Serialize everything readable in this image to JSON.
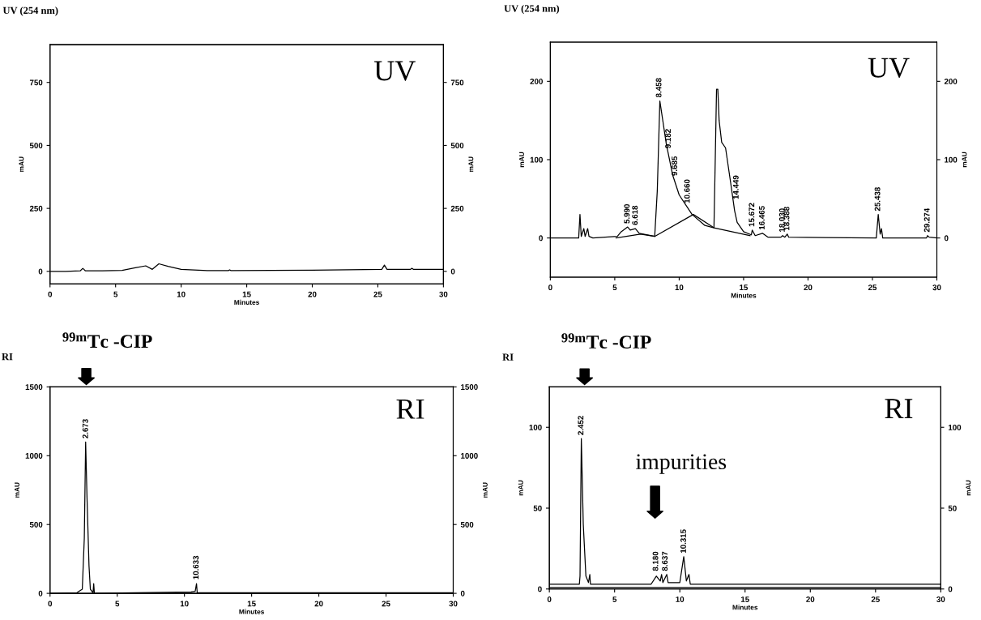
{
  "chart_data": [
    {
      "type": "line",
      "title": "UV (254 nm)",
      "xlabel": "Minutes",
      "ylabel": "mAU",
      "y2label": "mAU",
      "xlim": [
        0,
        30
      ],
      "xticks": [
        0,
        5,
        10,
        15,
        20,
        25,
        30
      ],
      "ylim": [
        -50,
        900
      ],
      "yticks": [
        0,
        250,
        500,
        750
      ],
      "y2lim": [
        -50,
        900
      ],
      "y2ticks": [
        0,
        250,
        500,
        750
      ],
      "series": [
        {
          "color": "#000000",
          "x": [
            0,
            1.2,
            2.3,
            2.5,
            2.7,
            4,
            5.5,
            6.5,
            7.3,
            7.8,
            8.3,
            9,
            10,
            12,
            13.6,
            13.7,
            13.8,
            20,
            25.3,
            25.5,
            25.7,
            27.5,
            27.6,
            27.7,
            30
          ],
          "values": [
            0,
            0,
            2,
            12,
            2,
            2,
            4,
            14,
            22,
            8,
            30,
            20,
            8,
            3,
            3,
            6,
            3,
            5,
            8,
            25,
            8,
            8,
            12,
            8,
            8
          ]
        }
      ],
      "annotations": [
        "UV"
      ]
    },
    {
      "type": "line",
      "title": "UV (254 nm)",
      "xlabel": "Minutes",
      "ylabel": "mAU",
      "y2label": "mAU",
      "xlim": [
        0,
        30
      ],
      "xticks": [
        0,
        5,
        10,
        15,
        20,
        25,
        30
      ],
      "ylim": [
        -50,
        250
      ],
      "yticks": [
        0,
        100,
        200
      ],
      "y2lim": [
        -50,
        250
      ],
      "y2ticks": [
        0,
        100,
        200
      ],
      "series": [
        {
          "color": "#000000",
          "x": [
            0,
            2.2,
            2.3,
            2.4,
            2.6,
            2.7,
            2.9,
            3.0,
            3.3,
            5.2,
            5.5,
            6.0,
            6.2,
            6.6,
            6.9,
            8.1,
            8.3,
            8.5,
            9.0,
            9.5,
            10.0,
            11.0,
            12.0,
            12.7,
            12.8,
            12.9,
            13.0,
            13.1,
            13.3,
            13.6,
            14.0,
            14.3,
            14.5,
            15.0,
            15.6,
            15.672,
            15.9,
            16.465,
            16.9,
            17.9,
            18.03,
            18.2,
            18.388,
            18.5,
            25.3,
            25.45,
            25.6,
            25.7,
            25.8,
            29.2,
            29.274,
            29.4,
            30
          ],
          "values": [
            0,
            0,
            30,
            2,
            12,
            2,
            12,
            2,
            0,
            2,
            8,
            14,
            10,
            12,
            6,
            2,
            60,
            175,
            120,
            80,
            55,
            30,
            16,
            13,
            100,
            190,
            190,
            150,
            122,
            115,
            70,
            35,
            20,
            8,
            4,
            10,
            3,
            6,
            1,
            1,
            3,
            1,
            5,
            1,
            0,
            30,
            5,
            12,
            0,
            0,
            3,
            1,
            0
          ]
        },
        {
          "color": "#000000",
          "x": [
            5.1,
            7.0,
            8.1,
            11.1,
            12.7,
            15.5
          ],
          "values": [
            0,
            5,
            2,
            30,
            13,
            3
          ]
        }
      ],
      "annotations": [
        "UV",
        {
          "text": "5.990",
          "x": 5.99,
          "y": 14
        },
        {
          "text": "6.618",
          "x": 6.618,
          "y": 12
        },
        {
          "text": "8.458",
          "x": 8.458,
          "y": 175
        },
        {
          "text": "9.182",
          "x": 9.182,
          "y": 110
        },
        {
          "text": "9.685",
          "x": 9.685,
          "y": 75
        },
        {
          "text": "10.660",
          "x": 10.66,
          "y": 40
        },
        {
          "text": "14.449",
          "x": 14.449,
          "y": 45
        },
        {
          "text": "15.672",
          "x": 15.672,
          "y": 10
        },
        {
          "text": "16.465",
          "x": 16.465,
          "y": 6
        },
        {
          "text": "18.030",
          "x": 18.03,
          "y": 3
        },
        {
          "text": "18.388",
          "x": 18.388,
          "y": 5
        },
        {
          "text": "25.438",
          "x": 25.438,
          "y": 30
        },
        {
          "text": "29.274",
          "x": 29.274,
          "y": 3
        }
      ]
    },
    {
      "type": "line",
      "title": "RI",
      "xlabel": "Minutes",
      "ylabel": "mAU",
      "y2label": "mAU",
      "xlim": [
        0,
        30
      ],
      "xticks": [
        0,
        5,
        10,
        15,
        20,
        25,
        30
      ],
      "ylim": [
        0,
        1500
      ],
      "yticks": [
        0,
        500,
        1000,
        1500
      ],
      "y2lim": [
        0,
        1500
      ],
      "y2ticks": [
        0,
        500,
        1000,
        1500
      ],
      "series": [
        {
          "color": "#000000",
          "x": [
            0,
            2.0,
            2.4,
            2.55,
            2.65,
            2.75,
            2.9,
            3.0,
            3.2,
            3.25,
            3.3,
            10.5,
            10.8,
            10.9,
            10.95,
            30
          ],
          "values": [
            0,
            5,
            30,
            400,
            1100,
            700,
            200,
            30,
            5,
            70,
            0,
            10,
            15,
            70,
            5,
            5
          ]
        }
      ],
      "annotations": [
        "RI",
        "$^{99m}$Tc -CIP",
        {
          "text": "2.673",
          "x": 2.673,
          "y": 1100
        },
        {
          "text": "10.633",
          "x": 10.9,
          "y": 75
        }
      ]
    },
    {
      "type": "line",
      "title": "RI",
      "xlabel": "Minutes",
      "ylabel": "mAU",
      "y2label": "mAU",
      "xlim": [
        0,
        30
      ],
      "xticks": [
        0,
        5,
        10,
        15,
        20,
        25,
        30
      ],
      "ylim": [
        0,
        125
      ],
      "yticks": [
        0,
        50,
        100
      ],
      "y2lim": [
        0,
        125
      ],
      "y2ticks": [
        0,
        50,
        100
      ],
      "series": [
        {
          "color": "#000000",
          "x": [
            0,
            2.3,
            2.35,
            2.45,
            2.6,
            2.8,
            3.0,
            3.1,
            3.15,
            7.8,
            8.2,
            8.5,
            8.6,
            8.7,
            9.0,
            9.1,
            10.0,
            10.3,
            10.5,
            10.7,
            10.8,
            30
          ],
          "values": [
            3,
            3,
            8,
            93,
            40,
            8,
            4,
            9,
            3,
            3,
            8,
            5,
            9,
            4,
            9,
            4,
            4,
            20,
            5,
            9,
            3,
            3
          ]
        },
        {
          "color": "#000000",
          "x": [
            0,
            30
          ],
          "values": [
            1,
            1
          ]
        }
      ],
      "annotations": [
        "RI",
        "$^{99m}$Tc -CIP",
        "impurities",
        {
          "text": "2.452",
          "x": 2.452,
          "y": 93
        },
        {
          "text": "8.180",
          "x": 8.18,
          "y": 9
        },
        {
          "text": "8.637",
          "x": 8.9,
          "y": 9
        },
        {
          "text": "10.315",
          "x": 10.315,
          "y": 20
        }
      ]
    }
  ]
}
